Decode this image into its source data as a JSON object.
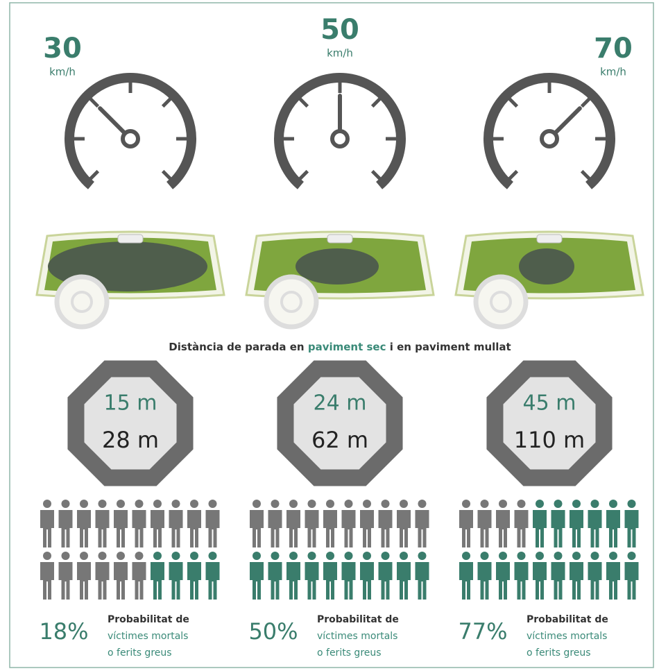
{
  "title": {
    "before": "Distància de parada en ",
    "highlight": "paviment sec",
    "after": " i en paviment mullat"
  },
  "panels": [
    {
      "speed": "30",
      "unit": "km/h",
      "dry_distance": "15 m",
      "wet_distance": "28 m",
      "percentage": "18%",
      "caption": [
        "Probabilitat de",
        "víctimes mortals",
        "o ferits greus"
      ]
    },
    {
      "speed": "50",
      "unit": "km/h",
      "dry_distance": "24 m",
      "wet_distance": "62 m",
      "percentage": "50%",
      "caption": [
        "Probabilitat de",
        "víctimes mortals",
        "o ferits greus"
      ]
    },
    {
      "speed": "70",
      "unit": "km/h",
      "dry_distance": "45 m",
      "wet_distance": "110 m",
      "percentage": "77%",
      "caption": [
        "Probabilitat de",
        "víctimes mortals",
        "o ferits greus"
      ]
    }
  ]
}
